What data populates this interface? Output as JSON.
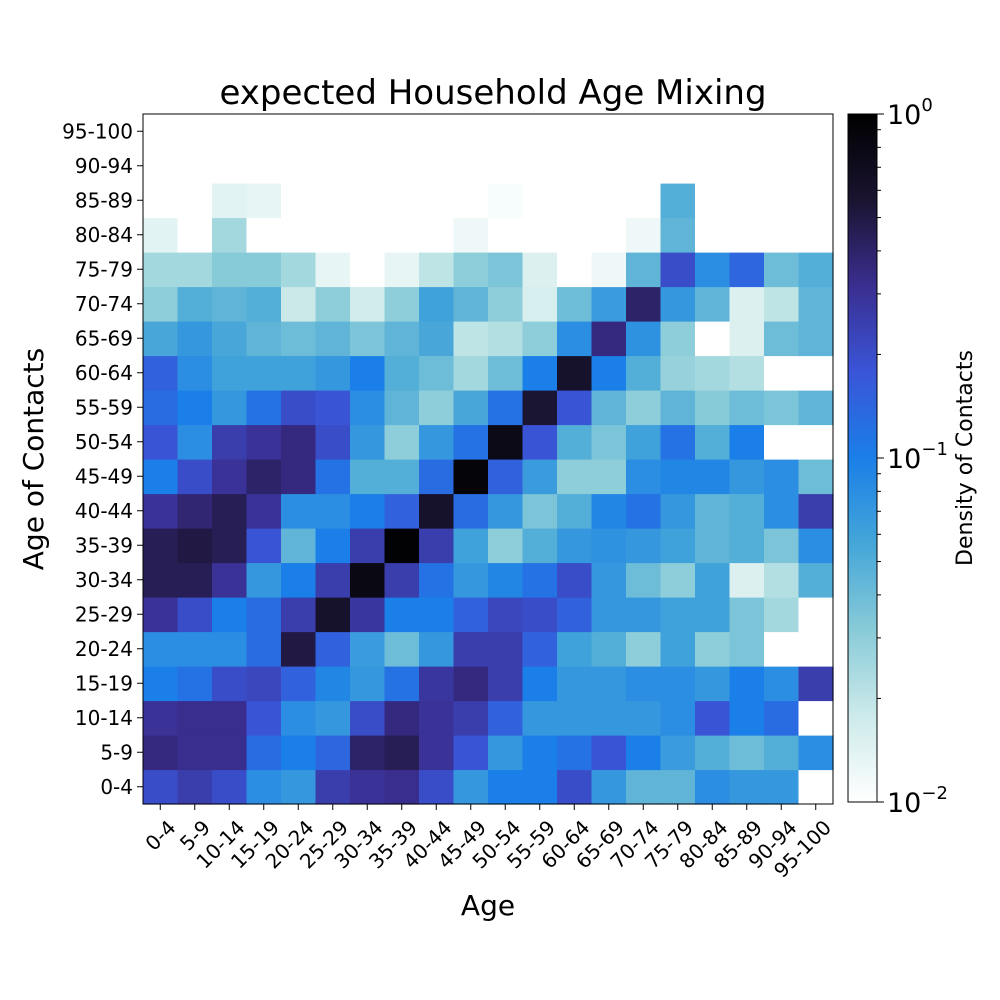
{
  "chart_data": {
    "type": "heatmap",
    "title": "expected Household Age Mixing",
    "xlabel": "Age",
    "ylabel": "Age of Contacts",
    "colorbar_label": "Density of Contacts",
    "colorbar_scale": "log",
    "colorbar_range": [
      0.01,
      1
    ],
    "colorbar_ticks": [
      {
        "base": "10",
        "exp": "0"
      },
      {
        "base": "10",
        "exp": "−1"
      },
      {
        "base": "10",
        "exp": "−2"
      }
    ],
    "x_categories": [
      "0-4",
      "5-9",
      "10-14",
      "15-19",
      "20-24",
      "25-29",
      "30-34",
      "35-39",
      "40-44",
      "45-49",
      "50-54",
      "55-59",
      "60-64",
      "65-69",
      "70-74",
      "75-79",
      "80-84",
      "85-89",
      "90-94",
      "95-100"
    ],
    "y_categories": [
      "0-4",
      "5-9",
      "10-14",
      "15-19",
      "20-24",
      "25-29",
      "30-34",
      "35-39",
      "40-44",
      "45-49",
      "50-54",
      "55-59",
      "60-64",
      "65-69",
      "70-74",
      "75-79",
      "80-84",
      "85-89",
      "90-94",
      "95-100"
    ],
    "values": [
      [
        0.2,
        0.25,
        0.2,
        0.08,
        0.07,
        0.25,
        0.3,
        0.32,
        0.2,
        0.07,
        0.1,
        0.1,
        0.2,
        0.07,
        0.045,
        0.045,
        0.08,
        0.07,
        0.07,
        0.01
      ],
      [
        0.35,
        0.32,
        0.32,
        0.13,
        0.1,
        0.14,
        0.4,
        0.45,
        0.3,
        0.18,
        0.07,
        0.1,
        0.12,
        0.18,
        0.1,
        0.065,
        0.05,
        0.04,
        0.05,
        0.08
      ],
      [
        0.3,
        0.32,
        0.32,
        0.18,
        0.08,
        0.07,
        0.2,
        0.35,
        0.3,
        0.25,
        0.15,
        0.07,
        0.07,
        0.07,
        0.07,
        0.08,
        0.18,
        0.1,
        0.13,
        0.01
      ],
      [
        0.1,
        0.12,
        0.2,
        0.22,
        0.15,
        0.09,
        0.07,
        0.12,
        0.28,
        0.35,
        0.25,
        0.1,
        0.07,
        0.07,
        0.08,
        0.08,
        0.07,
        0.1,
        0.08,
        0.25
      ],
      [
        0.08,
        0.08,
        0.08,
        0.13,
        0.5,
        0.15,
        0.065,
        0.04,
        0.07,
        0.25,
        0.25,
        0.15,
        0.06,
        0.05,
        0.03,
        0.06,
        0.03,
        0.035,
        0.01,
        0.01
      ],
      [
        0.3,
        0.2,
        0.1,
        0.13,
        0.25,
        0.6,
        0.28,
        0.1,
        0.1,
        0.15,
        0.22,
        0.2,
        0.15,
        0.07,
        0.07,
        0.06,
        0.06,
        0.035,
        0.025,
        0.01
      ],
      [
        0.45,
        0.45,
        0.3,
        0.07,
        0.1,
        0.25,
        0.8,
        0.25,
        0.12,
        0.07,
        0.09,
        0.12,
        0.2,
        0.07,
        0.04,
        0.03,
        0.06,
        0.015,
        0.022,
        0.05
      ],
      [
        0.45,
        0.5,
        0.45,
        0.18,
        0.045,
        0.1,
        0.25,
        0.95,
        0.25,
        0.06,
        0.03,
        0.05,
        0.07,
        0.075,
        0.07,
        0.06,
        0.045,
        0.05,
        0.035,
        0.08
      ],
      [
        0.3,
        0.38,
        0.45,
        0.3,
        0.08,
        0.08,
        0.1,
        0.15,
        0.6,
        0.13,
        0.07,
        0.035,
        0.05,
        0.09,
        0.12,
        0.07,
        0.045,
        0.05,
        0.08,
        0.25
      ],
      [
        0.1,
        0.2,
        0.3,
        0.4,
        0.35,
        0.12,
        0.05,
        0.05,
        0.13,
        0.9,
        0.15,
        0.065,
        0.03,
        0.03,
        0.08,
        0.09,
        0.09,
        0.07,
        0.08,
        0.04
      ],
      [
        0.18,
        0.08,
        0.25,
        0.3,
        0.35,
        0.2,
        0.07,
        0.03,
        0.07,
        0.12,
        0.75,
        0.18,
        0.05,
        0.035,
        0.06,
        0.12,
        0.05,
        0.1,
        0.01,
        0.01
      ],
      [
        0.13,
        0.1,
        0.07,
        0.12,
        0.2,
        0.18,
        0.08,
        0.045,
        0.03,
        0.055,
        0.12,
        0.55,
        0.18,
        0.045,
        0.03,
        0.045,
        0.032,
        0.04,
        0.035,
        0.045
      ],
      [
        0.15,
        0.08,
        0.06,
        0.06,
        0.06,
        0.07,
        0.1,
        0.05,
        0.04,
        0.025,
        0.04,
        0.1,
        0.6,
        0.1,
        0.05,
        0.028,
        0.025,
        0.022,
        0.01,
        0.01
      ],
      [
        0.055,
        0.07,
        0.055,
        0.045,
        0.04,
        0.045,
        0.035,
        0.045,
        0.055,
        0.02,
        0.022,
        0.03,
        0.08,
        0.35,
        0.075,
        0.03,
        0.01,
        0.015,
        0.04,
        0.045
      ],
      [
        0.03,
        0.05,
        0.045,
        0.05,
        0.018,
        0.03,
        0.017,
        0.03,
        0.06,
        0.045,
        0.03,
        0.016,
        0.04,
        0.065,
        0.4,
        0.07,
        0.045,
        0.015,
        0.02,
        0.045
      ],
      [
        0.025,
        0.025,
        0.032,
        0.032,
        0.025,
        0.013,
        0.01,
        0.013,
        0.02,
        0.03,
        0.035,
        0.015,
        0.01,
        0.012,
        0.045,
        0.2,
        0.08,
        0.14,
        0.04,
        0.05
      ],
      [
        0.014,
        0.01,
        0.025,
        0.01,
        0.01,
        0.01,
        0.01,
        0.01,
        0.01,
        0.012,
        0.01,
        0.01,
        0.01,
        0.01,
        0.012,
        0.045,
        0.01,
        0.01,
        0.01,
        0.01
      ],
      [
        0.01,
        0.01,
        0.014,
        0.013,
        0.01,
        0.01,
        0.01,
        0.01,
        0.01,
        0.01,
        0.011,
        0.01,
        0.01,
        0.01,
        0.01,
        0.05,
        0.01,
        0.01,
        0.01,
        0.01
      ],
      [
        0.01,
        0.01,
        0.01,
        0.01,
        0.01,
        0.01,
        0.01,
        0.01,
        0.01,
        0.01,
        0.01,
        0.01,
        0.01,
        0.01,
        0.01,
        0.01,
        0.01,
        0.01,
        0.01,
        0.01
      ],
      [
        0.01,
        0.01,
        0.01,
        0.01,
        0.01,
        0.01,
        0.01,
        0.01,
        0.01,
        0.01,
        0.01,
        0.01,
        0.01,
        0.01,
        0.01,
        0.01,
        0.01,
        0.01,
        0.01,
        0.01
      ]
    ],
    "colormap": [
      "#ffffff",
      "#cdeaea",
      "#88cbd8",
      "#45a6d8",
      "#1a7fe8",
      "#3a55d8",
      "#3a2e90",
      "#1a1430",
      "#000000"
    ],
    "grid": false,
    "legend": "colorbar-right"
  }
}
